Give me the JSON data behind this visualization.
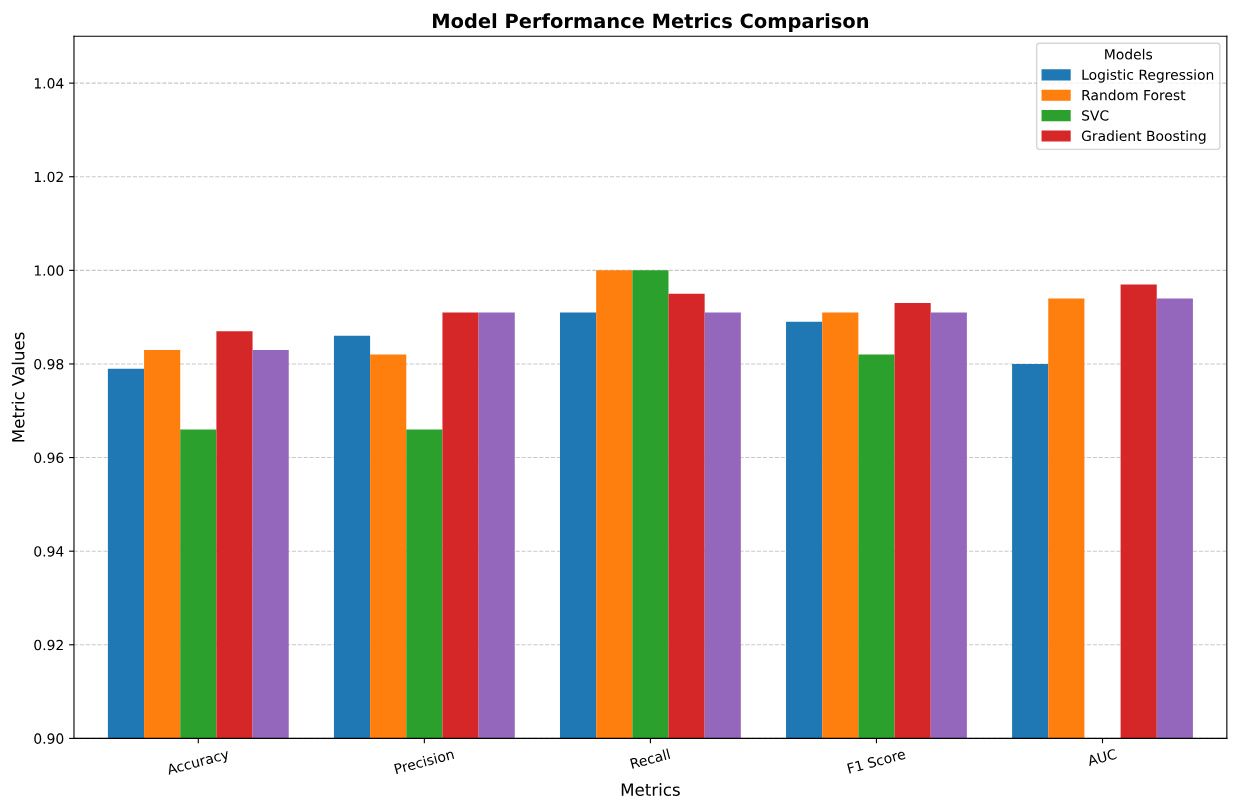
{
  "chart_data": {
    "type": "bar",
    "title": "Model Performance Metrics Comparison",
    "xlabel": "Metrics",
    "ylabel": "Metric Values",
    "legend_title": "Models",
    "categories": [
      "Accuracy",
      "Precision",
      "Recall",
      "F1 Score",
      "AUC"
    ],
    "series": [
      {
        "name": "Logistic Regression",
        "color": "#1f77b4",
        "values": [
          0.979,
          0.986,
          0.991,
          0.989,
          0.98
        ]
      },
      {
        "name": "Random Forest",
        "color": "#ff7f0e",
        "values": [
          0.983,
          0.982,
          1.0,
          0.991,
          0.994
        ]
      },
      {
        "name": "SVC",
        "color": "#2ca02c",
        "values": [
          0.966,
          0.966,
          1.0,
          0.982,
          null
        ]
      },
      {
        "name": "Gradient Boosting",
        "color": "#d62728",
        "values": [
          0.987,
          0.991,
          0.995,
          0.993,
          0.997
        ]
      },
      {
        "color": "#9467bd",
        "values": [
          0.983,
          0.991,
          0.991,
          0.991,
          0.994
        ]
      }
    ],
    "ylim": [
      0.9,
      1.05
    ],
    "yticks": [
      {
        "value": 0.9,
        "label": "0.90"
      },
      {
        "value": 0.92,
        "label": "0.92"
      },
      {
        "value": 0.94,
        "label": "0.94"
      },
      {
        "value": 0.96,
        "label": "0.96"
      },
      {
        "value": 0.98,
        "label": "0.98"
      },
      {
        "value": 1.0,
        "label": "1.00"
      },
      {
        "value": 1.02,
        "label": "1.02"
      },
      {
        "value": 1.04,
        "label": "1.04"
      }
    ],
    "grid": "y",
    "legend": "top right"
  }
}
